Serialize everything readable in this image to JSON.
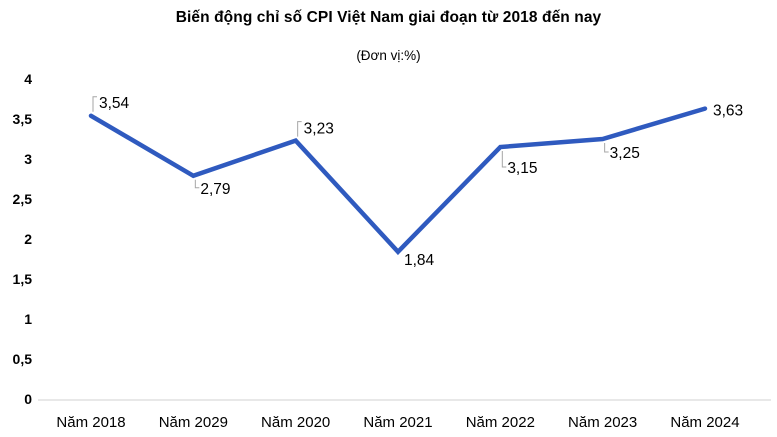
{
  "chart_data": {
    "type": "line",
    "title": "Biến động chỉ số CPI Việt Nam giai đoạn từ 2018 đến nay",
    "subtitle": "(Đơn vị:%)",
    "categories": [
      "Năm 2018",
      "Năm 2029",
      "Năm 2020",
      "Năm 2021",
      "Năm 2022",
      "Năm 2023",
      "Năm 2024"
    ],
    "values": [
      3.54,
      2.79,
      3.23,
      1.84,
      3.15,
      3.25,
      3.63
    ],
    "data_labels": [
      "3,54",
      "2,79",
      "3,23",
      "1,84",
      "3,15",
      "3,25",
      "3,63"
    ],
    "y_tick_labels": [
      "0",
      "0,5",
      "1",
      "1,5",
      "2",
      "2,5",
      "3",
      "3,5",
      "4"
    ],
    "y_tick_values": [
      0,
      0.5,
      1,
      1.5,
      2,
      2.5,
      3,
      3.5,
      4
    ],
    "ylim": [
      0,
      4
    ],
    "xlabel": "",
    "ylabel": "",
    "grid": false,
    "legend": false,
    "colors": {
      "line": "#2f5abf",
      "axis_line": "#d9d9d9",
      "leader_line": "#a6a6a6",
      "text": "#000000"
    }
  }
}
